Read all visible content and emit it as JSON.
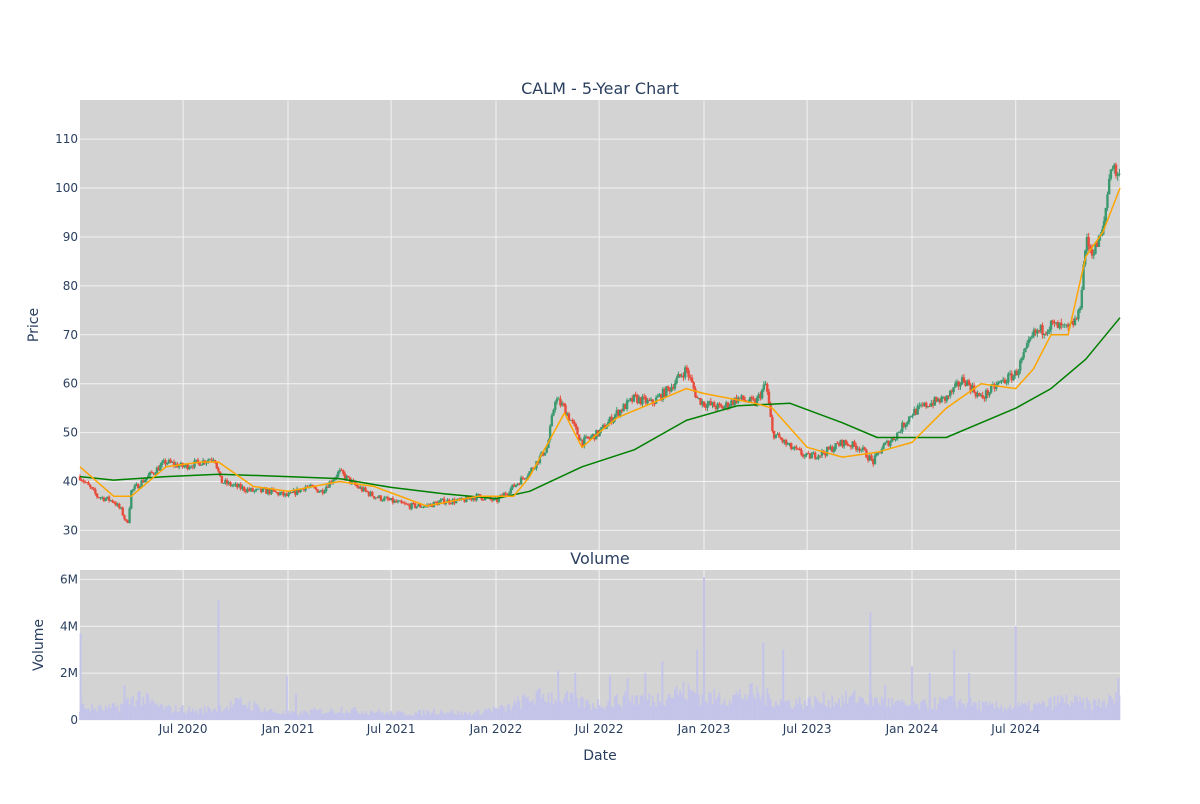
{
  "chart_data": [
    {
      "type": "candlestick",
      "title": "CALM - 5-Year Chart",
      "xlabel": "",
      "ylabel": "Price",
      "ylim": [
        26,
        118
      ],
      "yticks": [
        30,
        40,
        50,
        60,
        70,
        80,
        90,
        100,
        110
      ],
      "xlim": [
        "2020-01-02",
        "2024-12-31"
      ],
      "grid": true,
      "background": "#d3d3d3",
      "colors": {
        "increasing": "#3d9970",
        "decreasing": "#e74c3c",
        "ma_short": "#ffa500",
        "ma_long": "#008000"
      },
      "series": [
        {
          "name": "",
          "kind": "candles-close",
          "x": [
            "2020-01-02",
            "2020-02-01",
            "2020-03-01",
            "2020-03-15",
            "2020-03-25",
            "2020-04-01",
            "2020-04-20",
            "2020-05-10",
            "2020-06-01",
            "2020-07-01",
            "2020-08-01",
            "2020-08-25",
            "2020-09-05",
            "2020-10-01",
            "2020-11-01",
            "2020-12-01",
            "2021-01-01",
            "2021-02-01",
            "2021-03-01",
            "2021-04-01",
            "2021-05-01",
            "2021-06-01",
            "2021-07-01",
            "2021-08-01",
            "2021-09-01",
            "2021-10-01",
            "2021-11-01",
            "2021-12-01",
            "2022-01-01",
            "2022-02-01",
            "2022-03-01",
            "2022-04-01",
            "2022-04-15",
            "2022-05-01",
            "2022-06-01",
            "2022-07-01",
            "2022-08-01",
            "2022-09-01",
            "2022-10-01",
            "2022-11-01",
            "2022-12-01",
            "2022-12-20",
            "2023-01-01",
            "2023-02-01",
            "2023-03-01",
            "2023-04-01",
            "2023-04-20",
            "2023-05-01",
            "2023-06-01",
            "2023-07-01",
            "2023-08-01",
            "2023-09-01",
            "2023-10-01",
            "2023-10-25",
            "2023-11-10",
            "2023-12-01",
            "2024-01-01",
            "2024-02-01",
            "2024-03-01",
            "2024-04-01",
            "2024-05-01",
            "2024-06-01",
            "2024-07-01",
            "2024-08-01",
            "2024-09-01",
            "2024-10-01",
            "2024-10-20",
            "2024-11-01",
            "2024-11-15",
            "2024-12-01",
            "2024-12-15",
            "2024-12-31"
          ],
          "close": [
            41,
            37,
            36,
            34,
            31,
            38,
            40,
            42,
            44,
            43,
            44,
            45,
            40,
            39,
            38,
            38,
            37,
            39,
            38,
            42,
            39,
            37,
            36,
            35,
            35,
            36,
            36,
            37,
            36,
            39,
            42,
            47,
            57,
            55,
            48,
            50,
            54,
            57,
            56,
            59,
            63,
            57,
            56,
            55,
            57,
            56,
            60,
            50,
            47,
            45,
            46,
            48,
            47,
            44,
            47,
            49,
            54,
            56,
            57,
            61,
            57,
            60,
            62,
            70,
            72,
            71,
            74,
            89,
            87,
            91,
            105,
            102
          ]
        },
        {
          "name": "",
          "kind": "ma-short",
          "x": [
            "2020-01-02",
            "2020-03-01",
            "2020-04-01",
            "2020-06-01",
            "2020-08-01",
            "2020-09-01",
            "2020-11-01",
            "2021-01-01",
            "2021-04-01",
            "2021-06-01",
            "2021-09-01",
            "2021-12-01",
            "2022-02-01",
            "2022-03-01",
            "2022-05-01",
            "2022-06-01",
            "2022-07-01",
            "2022-08-01",
            "2022-10-01",
            "2022-12-01",
            "2023-01-01",
            "2023-04-01",
            "2023-05-01",
            "2023-07-01",
            "2023-09-01",
            "2023-11-01",
            "2024-01-01",
            "2024-03-01",
            "2024-05-01",
            "2024-07-01",
            "2024-08-01",
            "2024-09-01",
            "2024-10-01",
            "2024-11-01",
            "2024-12-01",
            "2024-12-31"
          ],
          "y": [
            43,
            37,
            37,
            43,
            44,
            44,
            39,
            38,
            40,
            39,
            35,
            37,
            37,
            41,
            54,
            47,
            50,
            53,
            56,
            59,
            58,
            56,
            55,
            47,
            45,
            46,
            48,
            55,
            60,
            59,
            63,
            70,
            70,
            86,
            91,
            100
          ]
        },
        {
          "name": "",
          "kind": "ma-long",
          "x": [
            "2020-01-02",
            "2020-03-01",
            "2020-06-01",
            "2020-09-01",
            "2021-01-01",
            "2021-04-01",
            "2021-07-01",
            "2021-10-01",
            "2022-01-01",
            "2022-03-01",
            "2022-06-01",
            "2022-09-01",
            "2022-12-01",
            "2023-03-01",
            "2023-06-01",
            "2023-09-01",
            "2023-11-01",
            "2024-01-01",
            "2024-03-01",
            "2024-05-01",
            "2024-07-01",
            "2024-09-01",
            "2024-11-01",
            "2024-12-31"
          ],
          "y": [
            41,
            40.3,
            41,
            41.5,
            41,
            40.6,
            38.8,
            37.5,
            36.5,
            38,
            43,
            46.5,
            52.5,
            55.5,
            56,
            52,
            49,
            49,
            49,
            52,
            55,
            59,
            65,
            73.5
          ]
        }
      ]
    },
    {
      "type": "bar",
      "title": "Volume",
      "xlabel": "Date",
      "ylabel": "Volume",
      "ylim": [
        0,
        6.4
      ],
      "yticks": [
        0,
        2,
        4,
        6
      ],
      "ytick_labels": [
        "0",
        "2M",
        "4M",
        "6M"
      ],
      "xticks": [
        "2020-07-01",
        "2021-01-01",
        "2021-07-01",
        "2022-01-01",
        "2022-07-01",
        "2023-01-01",
        "2023-07-01",
        "2024-01-01",
        "2024-07-01"
      ],
      "xtick_labels": [
        "Jul 2020",
        "Jan 2021",
        "Jul 2021",
        "Jan 2022",
        "Jul 2022",
        "Jan 2023",
        "Jul 2023",
        "Jan 2024",
        "Jul 2024"
      ],
      "grid": true,
      "background": "#d3d3d3",
      "colors": {
        "bars": "#c4c4ea"
      },
      "baseline_millions": [
        0.6,
        0.5,
        0.5,
        0.7,
        1.1,
        0.7,
        0.5,
        0.5,
        0.4,
        0.5,
        0.6,
        0.8,
        0.6,
        0.4,
        0.3,
        0.3,
        0.4,
        0.4,
        0.5,
        0.4,
        0.4,
        0.3,
        0.3,
        0.3,
        0.4,
        0.4,
        0.3,
        0.3,
        0.5,
        0.5,
        0.8,
        1.0,
        1.1,
        1.0,
        0.8,
        0.7,
        0.8,
        0.9,
        1.0,
        0.9,
        1.1,
        1.3,
        1.2,
        1.0,
        1.0,
        1.1,
        1.2,
        1.0,
        0.8,
        0.8,
        0.8,
        0.9,
        0.9,
        1.0,
        0.9,
        0.8,
        0.7,
        0.6,
        0.7,
        0.8,
        0.8,
        0.7,
        0.6,
        0.6,
        0.6,
        0.6,
        0.7,
        0.9,
        0.8,
        0.7,
        0.8,
        1.0
      ],
      "spikes": {
        "x": [
          "2020-01-03",
          "2020-03-20",
          "2020-09-01",
          "2020-12-30",
          "2021-01-15",
          "2022-04-20",
          "2022-05-20",
          "2022-07-20",
          "2022-08-20",
          "2022-09-20",
          "2022-10-20",
          "2022-12-20",
          "2023-01-01",
          "2023-04-15",
          "2023-05-20",
          "2023-10-20",
          "2023-11-15",
          "2024-01-01",
          "2024-02-01",
          "2024-03-15",
          "2024-04-10",
          "2024-07-01",
          "2024-12-28"
        ],
        "y": [
          3.7,
          1.5,
          5.1,
          1.9,
          1.1,
          2.1,
          2.0,
          1.9,
          1.8,
          2.0,
          2.5,
          3.0,
          6.1,
          3.3,
          3.0,
          4.6,
          1.5,
          2.3,
          2.0,
          3.0,
          2.0,
          4.0,
          1.8
        ]
      }
    }
  ]
}
